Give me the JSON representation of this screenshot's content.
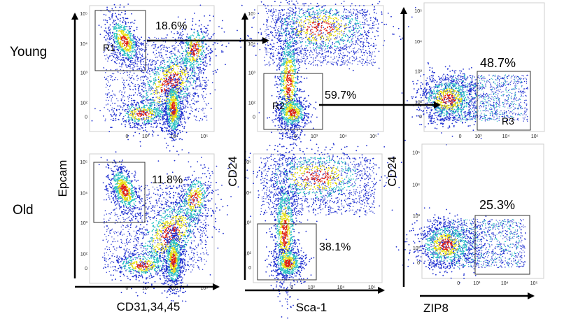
{
  "row_labels": [
    "Young",
    "Old"
  ],
  "axis_labels": {
    "epcam": "Epcam",
    "cd31": "CD31,34,45",
    "cd24_mid": "CD24",
    "sca1": "Sca-1",
    "cd24_right": "CD24",
    "zip8": "ZIP8"
  },
  "ticks": {
    "y": [
      "10⁵",
      "10⁴",
      "10³",
      "10²",
      "0"
    ],
    "x": [
      "0",
      "10³",
      "10⁴",
      "10⁵"
    ]
  },
  "gates": {
    "R1": "R1",
    "R2": "R2",
    "R3": "R3"
  },
  "percentages": {
    "young_r1": "18.6%",
    "old_r1": "11.8%",
    "young_r2": "59.7%",
    "old_r2": "38.1%",
    "young_r3": "48.7%",
    "old_r3": "25.3%"
  },
  "colors": {
    "density_low": "#1f2fd0",
    "density_mid": "#2ec4c4",
    "density_high": "#e8e010",
    "density_peak": "#e02010"
  },
  "chart_data": [
    {
      "type": "scatter",
      "panel": "Young Epcam vs CD31,34,45",
      "xlabel": "CD31,34,45",
      "ylabel": "Epcam",
      "gate": "R1",
      "gate_percent": 18.6
    },
    {
      "type": "scatter",
      "panel": "Old Epcam vs CD31,34,45",
      "xlabel": "CD31,34,45",
      "ylabel": "Epcam",
      "gate": "",
      "gate_percent": 11.8
    },
    {
      "type": "scatter",
      "panel": "Young CD24 vs Sca-1",
      "xlabel": "Sca-1",
      "ylabel": "CD24",
      "gate": "R2",
      "gate_percent": 59.7
    },
    {
      "type": "scatter",
      "panel": "Old CD24 vs Sca-1",
      "xlabel": "Sca-1",
      "ylabel": "CD24",
      "gate": "",
      "gate_percent": 38.1
    },
    {
      "type": "scatter",
      "panel": "Young CD24 vs ZIP8",
      "xlabel": "ZIP8",
      "ylabel": "CD24",
      "gate": "R3",
      "gate_percent": 48.7
    },
    {
      "type": "scatter",
      "panel": "Old CD24 vs ZIP8",
      "xlabel": "ZIP8",
      "ylabel": "CD24",
      "gate": "",
      "gate_percent": 25.3
    }
  ]
}
